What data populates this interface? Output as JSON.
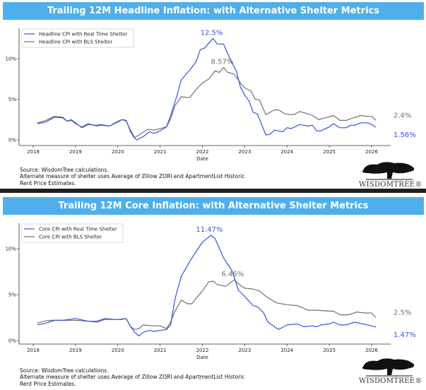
{
  "panels": [
    {
      "banner": "Trailing 12M Headline Inflation: with Alternative Shelter Metrics",
      "source_lines": [
        "Source: WisdomTree calculations.",
        "Alternate measure of shelter uses Average of Zillow ZORI and ApartmentList Historic",
        "Rent Price Estimates."
      ]
    },
    {
      "banner": "Trailing 12M Core Inflation: with Alternative Shelter Metrics",
      "source_lines": [
        "Source: WisdomTree calculations.",
        "Alternate measure of shelter uses Average of Zillow ZORI and ApartmentList Historic",
        "Rent Price Estimates."
      ]
    }
  ],
  "logo": {
    "text": "WisdomTree",
    "display": "WISDOMTREE®"
  },
  "colors": {
    "blue": "#3355D6",
    "gray": "#707070",
    "banner": "#4FAFEA"
  },
  "chart_data": [
    {
      "type": "line",
      "title": "Trailing 12M Headline Inflation: with Alternative Shelter Metrics",
      "xlabel": "Date",
      "ylabel": "",
      "xticks": [
        "2018",
        "2019",
        "2020",
        "2021",
        "2022",
        "2023",
        "2024",
        "2025",
        "2026"
      ],
      "yticks": [
        "0%",
        "5%",
        "10%"
      ],
      "ylim": [
        -0.6,
        13.5
      ],
      "xlim": [
        2017.7,
        2026.5
      ],
      "legend": "top-left",
      "series": [
        {
          "name": "Headline CPI with Real Time Shelter",
          "color": "#3355D6",
          "peak_label": "12.5%",
          "end_label": "1.56%",
          "x": [
            2018.1,
            2018.3,
            2018.5,
            2018.7,
            2018.8,
            2018.9,
            2019.0,
            2019.15,
            2019.3,
            2019.5,
            2019.6,
            2019.8,
            2020.0,
            2020.1,
            2020.2,
            2020.3,
            2020.4,
            2020.45,
            2020.6,
            2020.75,
            2020.85,
            2021.0,
            2021.15,
            2021.25,
            2021.4,
            2021.5,
            2021.7,
            2021.85,
            2021.95,
            2022.05,
            2022.25,
            2022.35,
            2022.5,
            2022.65,
            2022.8,
            2022.9,
            2023.0,
            2023.1,
            2023.2,
            2023.3,
            2023.5,
            2023.6,
            2023.7,
            2023.8,
            2023.9,
            2024.0,
            2024.1,
            2024.3,
            2024.5,
            2024.6,
            2024.7,
            2024.8,
            2025.0,
            2025.1,
            2025.25,
            2025.4,
            2025.5,
            2025.6,
            2025.75,
            2025.9,
            2026.0,
            2026.1
          ],
          "y": [
            2.0,
            2.2,
            2.8,
            2.7,
            2.3,
            2.5,
            2.1,
            1.5,
            1.9,
            1.8,
            1.9,
            1.7,
            2.2,
            2.5,
            2.4,
            1.0,
            0.2,
            0.0,
            0.4,
            1.0,
            0.8,
            1.1,
            1.6,
            3.0,
            5.5,
            7.4,
            8.6,
            9.6,
            11.1,
            11.3,
            12.5,
            11.8,
            11.8,
            10.0,
            8.5,
            6.5,
            5.5,
            4.8,
            3.4,
            3.2,
            0.6,
            0.7,
            1.2,
            1.1,
            1.0,
            1.5,
            1.4,
            1.9,
            1.7,
            1.8,
            1.1,
            1.1,
            1.6,
            2.0,
            1.5,
            1.5,
            1.8,
            1.8,
            2.1,
            2.1,
            1.9,
            1.56
          ]
        },
        {
          "name": "Headline CPI with BLS Shelter",
          "color": "#707070",
          "peak_label": "8.57%",
          "end_label": "2.4%",
          "x": [
            2018.1,
            2018.3,
            2018.5,
            2018.7,
            2018.8,
            2018.9,
            2019.0,
            2019.15,
            2019.3,
            2019.5,
            2019.6,
            2019.8,
            2020.0,
            2020.1,
            2020.2,
            2020.3,
            2020.4,
            2020.5,
            2020.7,
            2020.85,
            2021.0,
            2021.15,
            2021.25,
            2021.35,
            2021.5,
            2021.7,
            2021.85,
            2022.0,
            2022.15,
            2022.3,
            2022.4,
            2022.5,
            2022.6,
            2022.75,
            2022.9,
            2023.0,
            2023.15,
            2023.25,
            2023.35,
            2023.5,
            2023.7,
            2023.8,
            2023.95,
            2024.1,
            2024.2,
            2024.3,
            2024.5,
            2024.6,
            2024.75,
            2024.9,
            2025.1,
            2025.25,
            2025.4,
            2025.5,
            2025.75,
            2025.9,
            2026.0,
            2026.1
          ],
          "y": [
            2.1,
            2.4,
            2.9,
            2.8,
            2.3,
            2.4,
            2.0,
            1.6,
            2.0,
            1.7,
            1.8,
            1.7,
            2.3,
            2.5,
            2.3,
            1.2,
            0.3,
            0.6,
            1.3,
            1.2,
            1.4,
            1.6,
            2.6,
            4.2,
            5.3,
            5.2,
            6.2,
            7.0,
            7.5,
            8.5,
            8.3,
            8.9,
            8.3,
            8.1,
            7.0,
            6.4,
            6.0,
            5.0,
            4.9,
            3.1,
            3.7,
            3.7,
            3.2,
            3.1,
            3.2,
            3.5,
            3.2,
            3.0,
            2.5,
            2.7,
            3.0,
            2.4,
            2.4,
            2.6,
            3.0,
            2.9,
            2.9,
            2.4
          ]
        }
      ]
    },
    {
      "type": "line",
      "title": "Trailing 12M Core Inflation: with Alternative Shelter Metrics",
      "xlabel": "Date",
      "ylabel": "",
      "xticks": [
        "2018",
        "2019",
        "2020",
        "2021",
        "2022",
        "2023",
        "2024",
        "2025",
        "2026"
      ],
      "yticks": [
        "0%",
        "5%",
        "10%"
      ],
      "ylim": [
        -0.4,
        12.6
      ],
      "xlim": [
        2017.7,
        2026.5
      ],
      "legend": "top-left",
      "series": [
        {
          "name": "Core CPI with Real Time Shelter",
          "color": "#3355D6",
          "peak_label": "11.47%",
          "end_label": "1.47%",
          "x": [
            2018.1,
            2018.3,
            2018.5,
            2018.7,
            2019.0,
            2019.1,
            2019.3,
            2019.5,
            2019.7,
            2019.9,
            2020.1,
            2020.2,
            2020.3,
            2020.4,
            2020.5,
            2020.6,
            2020.75,
            2020.85,
            2021.0,
            2021.15,
            2021.25,
            2021.35,
            2021.5,
            2021.7,
            2021.85,
            2022.0,
            2022.2,
            2022.3,
            2022.5,
            2022.7,
            2022.85,
            2023.0,
            2023.2,
            2023.3,
            2023.45,
            2023.55,
            2023.8,
            2024.0,
            2024.25,
            2024.4,
            2024.6,
            2024.7,
            2024.8,
            2025.0,
            2025.1,
            2025.25,
            2025.4,
            2025.6,
            2025.8,
            2026.0,
            2026.1
          ],
          "y": [
            1.7,
            1.9,
            2.2,
            2.2,
            2.4,
            2.3,
            2.1,
            2.1,
            2.4,
            2.3,
            2.3,
            2.4,
            1.5,
            0.9,
            0.5,
            0.9,
            1.1,
            1.0,
            1.1,
            1.2,
            1.7,
            4.5,
            7.0,
            8.6,
            9.7,
            10.7,
            11.47,
            11.1,
            9.0,
            7.6,
            5.5,
            4.8,
            3.8,
            3.7,
            3.0,
            2.0,
            1.2,
            1.7,
            1.8,
            1.5,
            1.6,
            1.5,
            1.7,
            1.8,
            2.0,
            1.7,
            1.7,
            2.0,
            1.8,
            1.6,
            1.47
          ]
        },
        {
          "name": "Core CPI with BLS Shelter",
          "color": "#707070",
          "peak_label": "6.46%",
          "end_label": "2.5%",
          "x": [
            2018.1,
            2018.25,
            2018.4,
            2018.6,
            2018.9,
            2019.0,
            2019.3,
            2019.5,
            2019.7,
            2020.0,
            2020.2,
            2020.3,
            2020.4,
            2020.5,
            2020.6,
            2020.8,
            2021.0,
            2021.15,
            2021.25,
            2021.35,
            2021.5,
            2021.65,
            2021.75,
            2021.85,
            2022.0,
            2022.15,
            2022.25,
            2022.35,
            2022.55,
            2022.75,
            2022.9,
            2023.0,
            2023.2,
            2023.35,
            2023.5,
            2023.75,
            2024.0,
            2024.25,
            2024.5,
            2024.7,
            2025.0,
            2025.1,
            2025.25,
            2025.45,
            2025.65,
            2025.85,
            2026.0,
            2026.1
          ],
          "y": [
            1.9,
            2.1,
            2.2,
            2.2,
            2.2,
            2.2,
            2.1,
            2.0,
            2.3,
            2.3,
            2.4,
            1.5,
            1.2,
            1.3,
            1.7,
            1.6,
            1.6,
            1.3,
            2.0,
            3.2,
            4.4,
            4.0,
            4.0,
            4.6,
            5.4,
            6.4,
            6.46,
            6.1,
            5.9,
            6.6,
            6.0,
            5.7,
            5.6,
            5.4,
            4.8,
            4.1,
            3.9,
            3.8,
            3.3,
            3.3,
            3.2,
            3.2,
            2.8,
            2.8,
            3.1,
            3.0,
            3.0,
            2.5
          ]
        }
      ]
    }
  ]
}
